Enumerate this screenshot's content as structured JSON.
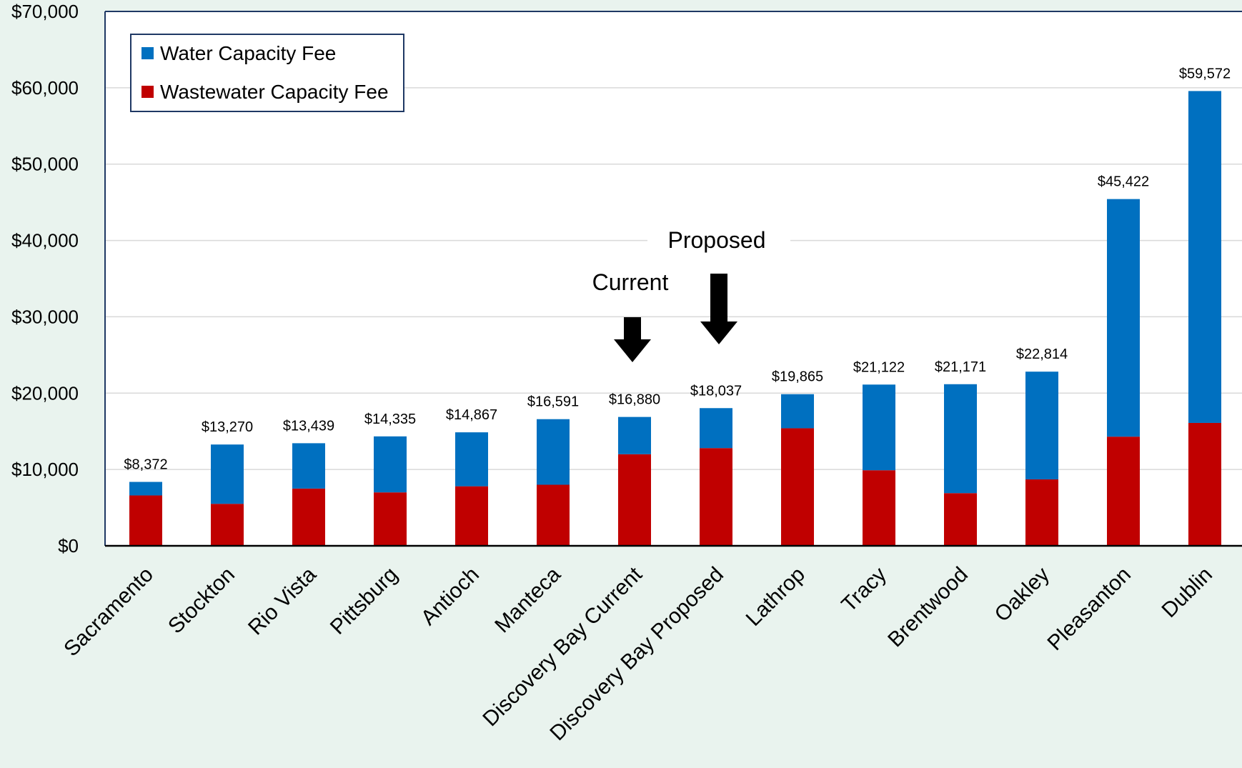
{
  "chart_data": {
    "type": "bar",
    "stacked": true,
    "categories": [
      "Sacramento",
      "Stockton",
      "Rio Vista",
      "Pittsburg",
      "Antioch",
      "Manteca",
      "Discovery Bay Current",
      "Discovery Bay Proposed",
      "Lathrop",
      "Tracy",
      "Brentwood",
      "Oakley",
      "Pleasanton",
      "Dublin"
    ],
    "series": [
      {
        "name": "Wastewater Capacity Fee",
        "color": "#c00000",
        "values": [
          6600,
          5500,
          7500,
          7000,
          7800,
          8000,
          12000,
          12800,
          15400,
          9900,
          6900,
          8700,
          14300,
          16100
        ]
      },
      {
        "name": "Water Capacity Fee",
        "color": "#0070c0",
        "values": [
          1772,
          7770,
          5939,
          7335,
          7067,
          8591,
          4880,
          5237,
          4465,
          11222,
          14271,
          14114,
          31122,
          43472
        ]
      }
    ],
    "totals": [
      8372,
      13270,
      13439,
      14335,
      14867,
      16591,
      16880,
      18037,
      19865,
      21122,
      21171,
      22814,
      45422,
      59572
    ],
    "total_labels": [
      "$8,372",
      "$13,270",
      "$13,439",
      "$14,335",
      "$14,867",
      "$16,591",
      "$16,880",
      "$18,037",
      "$19,865",
      "$21,122",
      "$21,171",
      "$22,814",
      "$45,422",
      "$59,572"
    ],
    "ylim": [
      0,
      70000
    ],
    "yticks": [
      0,
      10000,
      20000,
      30000,
      40000,
      50000,
      60000,
      70000
    ],
    "ytick_labels": [
      "$0",
      "$10,000",
      "$20,000",
      "$30,000",
      "$40,000",
      "$50,000",
      "$60,000",
      "$70,000"
    ],
    "legend": {
      "placement": "top-left",
      "entries": [
        {
          "label": "Water Capacity Fee",
          "color": "#0070c0"
        },
        {
          "label": "Wastewater Capacity Fee",
          "color": "#c00000"
        }
      ]
    },
    "annotations": [
      {
        "text": "Current",
        "category": "Discovery Bay Current",
        "marker": "down-arrow"
      },
      {
        "text": "Proposed",
        "category": "Discovery Bay Proposed",
        "marker": "down-arrow"
      }
    ],
    "grid": true
  }
}
